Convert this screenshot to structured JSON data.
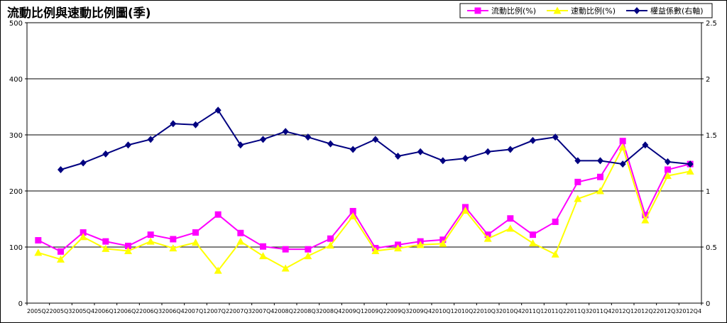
{
  "chart_data": {
    "type": "line",
    "title": "流動比例與速動比例圖(季)",
    "categories": [
      "2005Q2",
      "2005Q3",
      "2005Q4",
      "2006Q1",
      "2006Q2",
      "2006Q3",
      "2006Q4",
      "2007Q1",
      "2007Q2",
      "2007Q3",
      "2007Q4",
      "2008Q2",
      "2008Q3",
      "2008Q4",
      "2009Q1",
      "2009Q2",
      "2009Q3",
      "2009Q4",
      "2010Q1",
      "2010Q2",
      "2010Q3",
      "2010Q4",
      "2011Q1",
      "2011Q2",
      "2011Q3",
      "2011Q4",
      "2012Q1",
      "2012Q2",
      "2012Q3",
      "2012Q4"
    ],
    "x_tick_labels": [
      "2005Q2",
      "2005Q3",
      "2005Q4",
      "2006Q1",
      "2006Q2",
      "2006Q3",
      "2006Q4",
      "2007Q1",
      "2007Q2",
      "2007Q3",
      "2007Q4",
      "2008Q2",
      "2008Q3",
      "2008Q4",
      "2009Q1",
      "2009Q2",
      "2009Q3",
      "2009Q4",
      "2010Q1",
      "2010Q2",
      "2010Q3",
      "2010Q4",
      "2011Q1",
      "2011Q2",
      "2011Q3",
      "2011Q4",
      "2012Q1",
      "2012Q2",
      "2012Q3",
      "2012Q4"
    ],
    "y_left": {
      "min": 0,
      "max": 500,
      "ticks": [
        0,
        100,
        200,
        300,
        400,
        500
      ]
    },
    "y_right": {
      "min": 0,
      "max": 2.5,
      "ticks": [
        0,
        0.5,
        1,
        1.5,
        2,
        2.5
      ]
    },
    "grid": "horizontal",
    "legend_position": "top-right",
    "series": [
      {
        "name": "流動比例(%)",
        "axis": "left",
        "color": "#ff00ff",
        "marker": "square",
        "values": [
          112,
          92,
          126,
          110,
          102,
          122,
          114,
          126,
          158,
          125,
          101,
          96,
          96,
          115,
          164,
          98,
          104,
          110,
          113,
          171,
          122,
          151,
          122,
          145,
          216,
          225,
          289,
          157,
          238,
          248
        ]
      },
      {
        "name": "速動比例(%)",
        "axis": "left",
        "color": "#ffff00",
        "marker": "triangle",
        "values": [
          90,
          78,
          118,
          97,
          93,
          110,
          98,
          108,
          58,
          110,
          84,
          62,
          84,
          103,
          155,
          93,
          98,
          104,
          106,
          165,
          115,
          133,
          107,
          87,
          186,
          200,
          278,
          148,
          227,
          235
        ]
      },
      {
        "name": "權益係數(右軸)",
        "axis": "right",
        "color": "#000080",
        "marker": "diamond",
        "values": [
          null,
          1.19,
          1.25,
          1.33,
          1.41,
          1.46,
          1.6,
          1.59,
          1.72,
          1.41,
          1.46,
          1.53,
          1.48,
          1.42,
          1.37,
          1.46,
          1.31,
          1.35,
          1.27,
          1.29,
          1.35,
          1.37,
          1.45,
          1.48,
          1.27,
          1.27,
          1.24,
          1.41,
          1.26,
          1.24
        ]
      }
    ]
  }
}
